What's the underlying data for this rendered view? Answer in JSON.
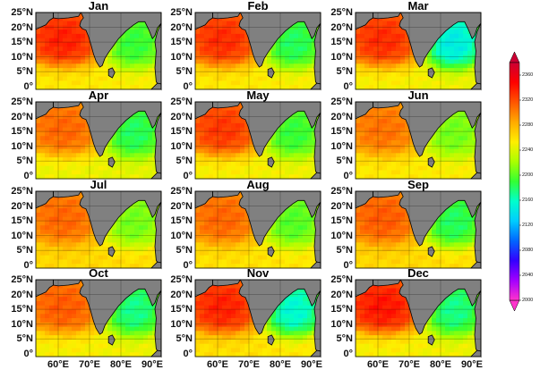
{
  "figure": {
    "months": [
      "Jan",
      "Feb",
      "Mar",
      "Apr",
      "May",
      "Jun",
      "Jul",
      "Aug",
      "Sep",
      "Oct",
      "Nov",
      "Dec"
    ],
    "lat_ticks": [
      "25°N",
      "20°N",
      "15°N",
      "10°N",
      "5°N",
      "0°"
    ],
    "lon_ticks": [
      "60°E",
      "70°E",
      "80°E",
      "90°E"
    ]
  },
  "colorbar": {
    "ticks": [
      "2360",
      "2320",
      "2280",
      "2240",
      "2200",
      "2160",
      "2120",
      "2080",
      "2040",
      "2000"
    ],
    "min": 2000,
    "max": 2380,
    "colors": [
      "#ff33cc",
      "#a300ff",
      "#3300ff",
      "#0066ff",
      "#00ccff",
      "#00ffcc",
      "#33ff33",
      "#aaff00",
      "#ffee00",
      "#ffaa00",
      "#ff5500",
      "#ff0000",
      "#cc0033"
    ]
  },
  "chart_data": {
    "type": "heatmap",
    "title": "",
    "variable_range": [
      2000,
      2380
    ],
    "panels": [
      {
        "month": "Jan",
        "arabian_sea": 2350,
        "bay_of_bengal": 2180,
        "equator": 2255
      },
      {
        "month": "Feb",
        "arabian_sea": 2345,
        "bay_of_bengal": 2170,
        "equator": 2255
      },
      {
        "month": "Mar",
        "arabian_sea": 2345,
        "bay_of_bengal": 2130,
        "equator": 2250
      },
      {
        "month": "Apr",
        "arabian_sea": 2320,
        "bay_of_bengal": 2170,
        "equator": 2245
      },
      {
        "month": "May",
        "arabian_sea": 2340,
        "bay_of_bengal": 2180,
        "equator": 2250
      },
      {
        "month": "Jun",
        "arabian_sea": 2315,
        "bay_of_bengal": 2200,
        "equator": 2255
      },
      {
        "month": "Jul",
        "arabian_sea": 2320,
        "bay_of_bengal": 2200,
        "equator": 2265
      },
      {
        "month": "Aug",
        "arabian_sea": 2320,
        "bay_of_bengal": 2190,
        "equator": 2260
      },
      {
        "month": "Sep",
        "arabian_sea": 2325,
        "bay_of_bengal": 2170,
        "equator": 2265
      },
      {
        "month": "Oct",
        "arabian_sea": 2325,
        "bay_of_bengal": 2160,
        "equator": 2250
      },
      {
        "month": "Nov",
        "arabian_sea": 2350,
        "bay_of_bengal": 2140,
        "equator": 2260
      },
      {
        "month": "Dec",
        "arabian_sea": 2355,
        "bay_of_bengal": 2160,
        "equator": 2250
      }
    ]
  }
}
